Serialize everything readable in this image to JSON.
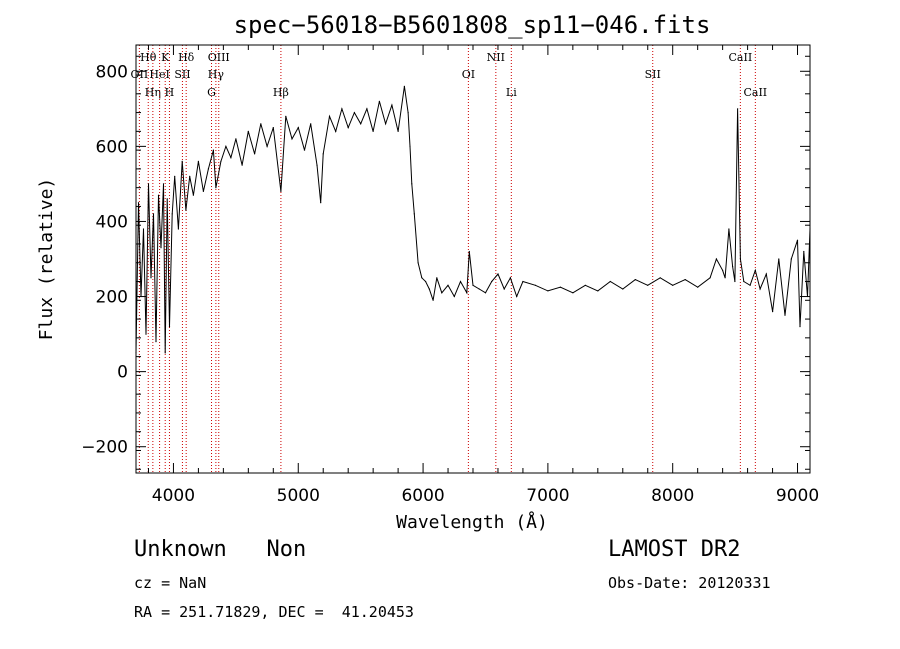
{
  "chart_data": {
    "type": "line",
    "title": "spec−56018−B5601808_sp11−046.fits",
    "xlabel": "Wavelength (Å)",
    "ylabel": "Flux (relative)",
    "xlim": [
      3700,
      9100
    ],
    "ylim": [
      -270,
      870
    ],
    "xticks": [
      4000,
      5000,
      6000,
      7000,
      8000,
      9000
    ],
    "yticks": [
      -200,
      0,
      200,
      400,
      600,
      800
    ],
    "ytick_labels": [
      "−200",
      "0",
      "200",
      "400",
      "600",
      "800"
    ],
    "grid": false,
    "line_color": "#000000",
    "line_marker_color": "#cc0000",
    "series": [
      {
        "x": [
          3700,
          3720,
          3740,
          3760,
          3780,
          3800,
          3820,
          3840,
          3860,
          3880,
          3900,
          3920,
          3934,
          3950,
          3968,
          3990,
          4010,
          4040,
          4070,
          4100,
          4130,
          4160,
          4200,
          4240,
          4280,
          4320,
          4340,
          4380,
          4420,
          4460,
          4500,
          4550,
          4600,
          4650,
          4700,
          4750,
          4800,
          4861,
          4900,
          4950,
          5000,
          5050,
          5100,
          5150,
          5180,
          5200,
          5250,
          5300,
          5350,
          5400,
          5450,
          5500,
          5550,
          5600,
          5650,
          5700,
          5750,
          5800,
          5850,
          5880,
          5895,
          5910,
          5930,
          5960,
          5990,
          6020,
          6050,
          6080,
          6110,
          6150,
          6200,
          6250,
          6300,
          6350,
          6370,
          6400,
          6450,
          6500,
          6550,
          6600,
          6650,
          6700,
          6750,
          6800,
          6900,
          7000,
          7100,
          7200,
          7300,
          7400,
          7500,
          7600,
          7700,
          7800,
          7900,
          8000,
          8100,
          8200,
          8300,
          8350,
          8400,
          8420,
          8450,
          8480,
          8498,
          8520,
          8542,
          8570,
          8620,
          8662,
          8700,
          8750,
          8800,
          8850,
          8900,
          8950,
          9000,
          9020,
          9050,
          9080,
          9100
        ],
        "y": [
          50,
          450,
          200,
          380,
          100,
          500,
          250,
          420,
          80,
          470,
          330,
          500,
          50,
          460,
          120,
          420,
          520,
          380,
          560,
          430,
          520,
          470,
          560,
          480,
          540,
          590,
          490,
          560,
          600,
          570,
          620,
          550,
          640,
          580,
          660,
          600,
          650,
          480,
          680,
          620,
          650,
          590,
          660,
          550,
          450,
          580,
          680,
          640,
          700,
          650,
          690,
          660,
          700,
          640,
          720,
          660,
          710,
          640,
          760,
          690,
          600,
          500,
          420,
          290,
          250,
          240,
          220,
          190,
          250,
          210,
          230,
          200,
          240,
          210,
          320,
          230,
          220,
          210,
          240,
          260,
          220,
          250,
          200,
          240,
          230,
          215,
          225,
          210,
          230,
          215,
          240,
          220,
          245,
          230,
          250,
          230,
          245,
          225,
          250,
          300,
          270,
          250,
          380,
          280,
          240,
          700,
          300,
          240,
          230,
          270,
          220,
          260,
          160,
          300,
          150,
          300,
          350,
          120,
          320,
          200,
          380
        ]
      }
    ],
    "line_markers": [
      {
        "label": "OII",
        "x": 3727,
        "row": 1
      },
      {
        "label": "Hθ",
        "x": 3798,
        "row": 0
      },
      {
        "label": "Hη",
        "x": 3835,
        "row": 2
      },
      {
        "label": "HeI",
        "x": 3889,
        "row": 1
      },
      {
        "label": "K",
        "x": 3934,
        "row": 0
      },
      {
        "label": "H",
        "x": 3968,
        "row": 2
      },
      {
        "label": "SII",
        "x": 4072,
        "row": 1
      },
      {
        "label": "Hδ",
        "x": 4102,
        "row": 0
      },
      {
        "label": "G",
        "x": 4305,
        "row": 2
      },
      {
        "label": "Hγ",
        "x": 4340,
        "row": 1
      },
      {
        "label": "OIII",
        "x": 4363,
        "row": 0
      },
      {
        "label": "Hβ",
        "x": 4861,
        "row": 2
      },
      {
        "label": "OI",
        "x": 6363,
        "row": 1
      },
      {
        "label": "NII",
        "x": 6583,
        "row": 0
      },
      {
        "label": "Li",
        "x": 6707,
        "row": 2
      },
      {
        "label": "SII",
        "x": 7840,
        "row": 1
      },
      {
        "label": "CaII",
        "x": 8542,
        "row": 0
      },
      {
        "label": "CaII",
        "x": 8662,
        "row": 2
      }
    ]
  },
  "info": {
    "class_line": "Unknown   Non",
    "survey": "LAMOST DR2",
    "cz": "cz = NaN",
    "obs_date": "Obs-Date: 20120331",
    "radec": "RA = 251.71829, DEC =  41.20453"
  }
}
